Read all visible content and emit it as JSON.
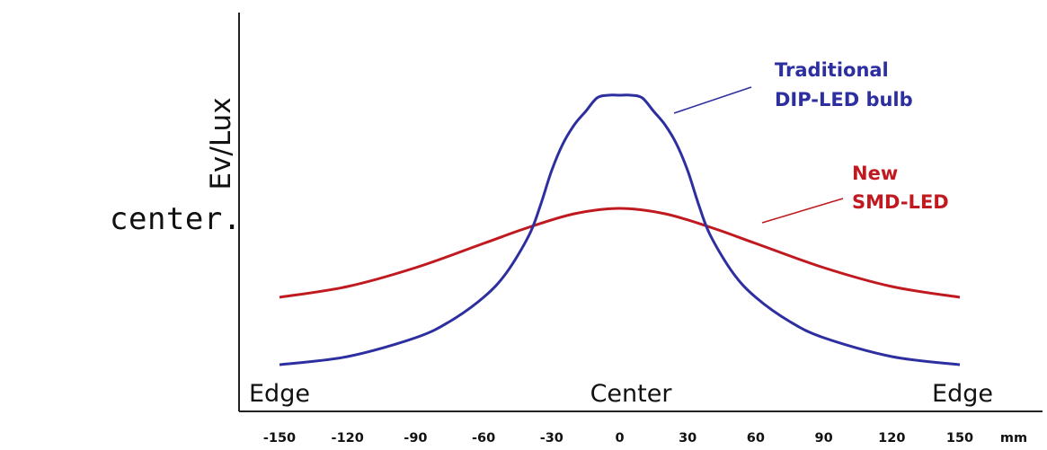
{
  "side_text": "center.",
  "chart_data": {
    "type": "line",
    "ylabel": "Ev/Lux",
    "x_unit": "mm",
    "xlim": [
      -150,
      150
    ],
    "x_ticks": [
      -150,
      -120,
      -90,
      -60,
      -30,
      0,
      30,
      60,
      90,
      120,
      150
    ],
    "region_labels": [
      "Edge",
      "Center",
      "Edge"
    ],
    "series": [
      {
        "name": "Traditional DIP-LED bulb",
        "color": "#2d2ea0",
        "x": [
          -150,
          -120,
          -90,
          -75,
          -60,
          -50,
          -40,
          -35,
          -30,
          -25,
          -20,
          -15,
          -10,
          -5,
          0,
          5,
          10,
          15,
          20,
          25,
          30,
          35,
          40,
          50,
          60,
          75,
          90,
          120,
          150
        ],
        "y": [
          0.0,
          0.03,
          0.1,
          0.16,
          0.25,
          0.34,
          0.48,
          0.59,
          0.72,
          0.82,
          0.89,
          0.94,
          0.99,
          1.0,
          1.0,
          1.0,
          0.99,
          0.94,
          0.89,
          0.82,
          0.72,
          0.59,
          0.48,
          0.34,
          0.25,
          0.16,
          0.1,
          0.03,
          0.0
        ]
      },
      {
        "name": "New SMD-LED",
        "color": "#c01a20",
        "x": [
          -150,
          -120,
          -90,
          -60,
          -40,
          -20,
          0,
          20,
          40,
          60,
          90,
          120,
          150
        ],
        "y": [
          0.25,
          0.29,
          0.36,
          0.45,
          0.51,
          0.56,
          0.58,
          0.56,
          0.51,
          0.45,
          0.36,
          0.29,
          0.25
        ]
      }
    ],
    "legend": [
      {
        "lines": [
          "Traditional",
          "DIP-LED bulb"
        ],
        "color": "#2d2ea0"
      },
      {
        "lines": [
          "New",
          "SMD-LED"
        ],
        "color": "#c01a20"
      }
    ]
  }
}
